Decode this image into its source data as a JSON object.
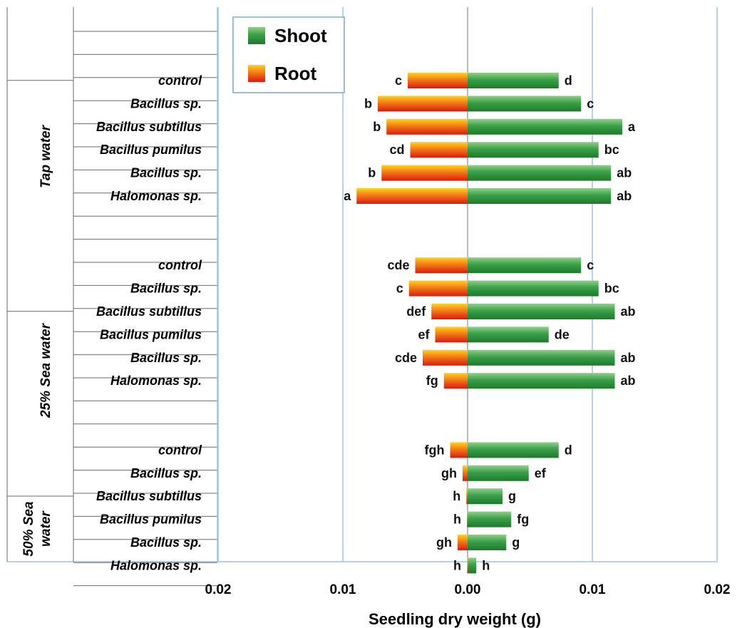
{
  "chart_data": {
    "type": "bar",
    "orientation": "horizontal",
    "xlabel": "Seedling dry weight (g)",
    "x_tick_labels": [
      "0.02",
      "0.01",
      "0.00",
      "0.01",
      "0.02"
    ],
    "xlim": [
      -0.02,
      0.02
    ],
    "grid": true,
    "legend_position": "top-left",
    "series": [
      {
        "name": "Shoot",
        "color": "#2e9a3a"
      },
      {
        "name": "Root",
        "color": "#e8401c"
      }
    ],
    "groups": [
      {
        "label": "Tap water",
        "categories": [
          "control",
          "Bacillus sp.",
          "Bacillus subtillus",
          "Bacillus pumilus",
          "Bacillus sp.",
          "Halomonas sp."
        ],
        "shoot": [
          0.0073,
          0.0091,
          0.0124,
          0.0105,
          0.0115,
          0.0115
        ],
        "root": [
          -0.0048,
          -0.0072,
          -0.0065,
          -0.0046,
          -0.0069,
          -0.0089
        ],
        "shoot_letters": [
          "d",
          "c",
          "a",
          "bc",
          "ab",
          "ab"
        ],
        "root_letters": [
          "c",
          "b",
          "b",
          "cd",
          "b",
          "a"
        ]
      },
      {
        "label": "25% Sea water",
        "categories": [
          "control",
          "Bacillus sp.",
          "Bacillus subtillus",
          "Bacillus pumilus",
          "Bacillus sp.",
          "Halomonas sp."
        ],
        "shoot": [
          0.0091,
          0.0105,
          0.0118,
          0.0065,
          0.0118,
          0.0118
        ],
        "root": [
          -0.0042,
          -0.0047,
          -0.0029,
          -0.0026,
          -0.0036,
          -0.0019
        ],
        "shoot_letters": [
          "c",
          "bc",
          "ab",
          "de",
          "ab",
          "ab"
        ],
        "root_letters": [
          "cde",
          "c",
          "def",
          "ef",
          "cde",
          "fg"
        ]
      },
      {
        "label": "50% Sea water",
        "categories": [
          "control",
          "Bacillus sp.",
          "Bacillus subtillus",
          "Bacillus pumilus",
          "Bacillus sp.",
          "Halomonas sp."
        ],
        "shoot": [
          0.0073,
          0.0049,
          0.0028,
          0.0035,
          0.0031,
          0.0007
        ],
        "root": [
          -0.0014,
          -0.0004,
          -0.0001,
          -5e-05,
          -0.0008,
          -3e-05
        ],
        "shoot_letters": [
          "d",
          "ef",
          "g",
          "fg",
          "g",
          "h"
        ],
        "root_letters": [
          "fgh",
          "gh",
          "h",
          "h",
          "gh",
          "h"
        ]
      }
    ]
  }
}
